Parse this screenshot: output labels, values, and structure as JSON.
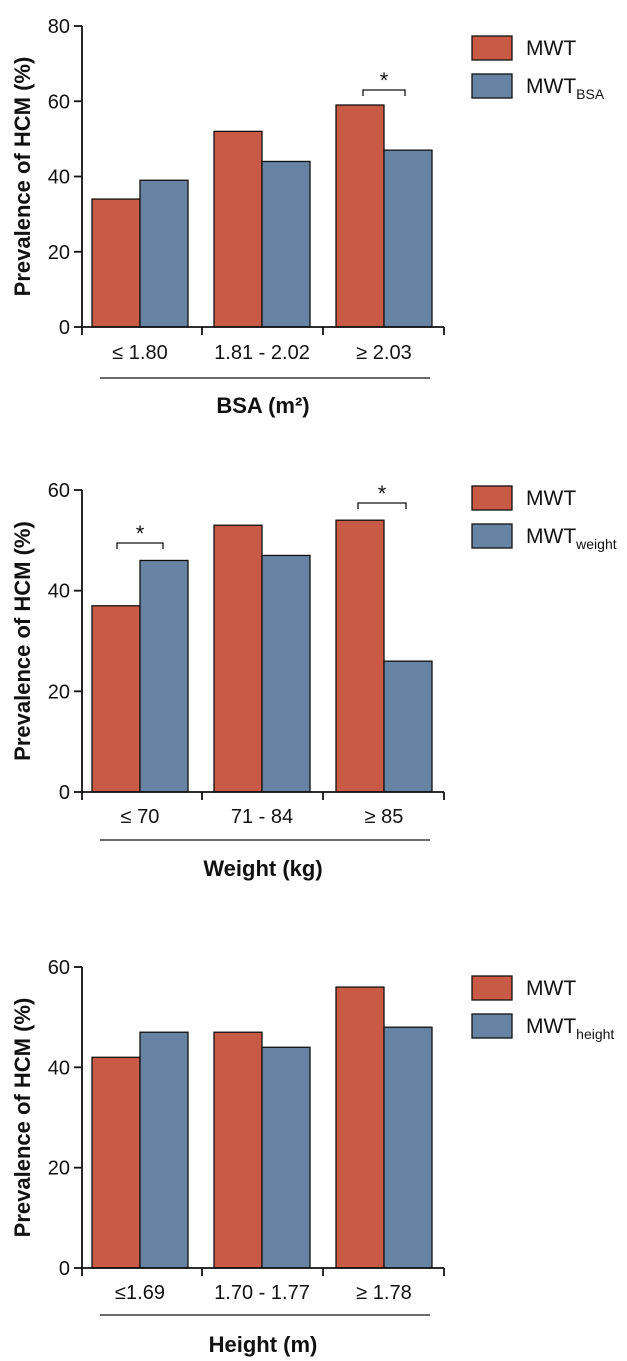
{
  "colors": {
    "series1": "#c95a45",
    "series2": "#6683a3",
    "axis": "#111111"
  },
  "chart_data": [
    {
      "type": "bar",
      "ylabel": "Prevalence of  HCM (%)",
      "xlabel": "BSA (m²)",
      "ylim": [
        0,
        80
      ],
      "yticks": [
        0,
        20,
        40,
        60,
        80
      ],
      "categories": [
        "≤ 1.80",
        "1.81 - 2.02",
        "≥ 2.03"
      ],
      "legend_position": "top-right",
      "series": [
        {
          "name": "MWT",
          "name_sub": "",
          "values": [
            34,
            52,
            59
          ]
        },
        {
          "name": "MWT",
          "name_sub": "BSA",
          "values": [
            39,
            44,
            47
          ]
        }
      ],
      "significance": [
        {
          "category_index": 2,
          "label": "*"
        }
      ]
    },
    {
      "type": "bar",
      "ylabel": "Prevalence of  HCM (%)",
      "xlabel": "Weight (kg)",
      "ylim": [
        0,
        60
      ],
      "yticks": [
        0,
        20,
        40,
        60
      ],
      "categories": [
        "≤ 70",
        "71 - 84",
        "≥ 85"
      ],
      "legend_position": "top-right",
      "series": [
        {
          "name": "MWT",
          "name_sub": "",
          "values": [
            37,
            53,
            54
          ]
        },
        {
          "name": "MWT",
          "name_sub": "weight",
          "values": [
            46,
            47,
            26
          ]
        }
      ],
      "significance": [
        {
          "category_index": 0,
          "label": "*"
        },
        {
          "category_index": 2,
          "label": "*"
        }
      ]
    },
    {
      "type": "bar",
      "ylabel": "Prevalence of  HCM (%)",
      "xlabel": "Height  (m)",
      "ylim": [
        0,
        60
      ],
      "yticks": [
        0,
        20,
        40,
        60
      ],
      "categories": [
        "≤1.69",
        "1.70 - 1.77",
        "≥ 1.78"
      ],
      "legend_position": "top-right",
      "series": [
        {
          "name": "MWT",
          "name_sub": "",
          "values": [
            42,
            47,
            56
          ]
        },
        {
          "name": "MWT",
          "name_sub": "height",
          "values": [
            47,
            44,
            48
          ]
        }
      ],
      "significance": []
    }
  ]
}
